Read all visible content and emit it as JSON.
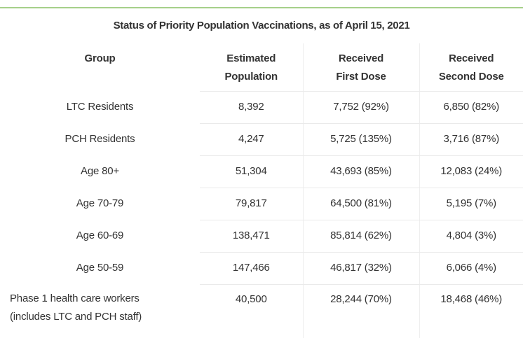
{
  "title": "Status of Priority Population Vaccinations, as of April 15, 2021",
  "headers": {
    "group": "Group",
    "population": [
      "Estimated",
      "Population"
    ],
    "first_dose": [
      "Received",
      "First Dose"
    ],
    "second_dose": [
      "Received",
      "Second Dose"
    ]
  },
  "rows": [
    {
      "group": "LTC Residents",
      "population": "8,392",
      "first_dose": "7,752 (92%)",
      "second_dose": "6,850 (82%)"
    },
    {
      "group": "PCH Residents",
      "population": "4,247",
      "first_dose": "5,725 (135%)",
      "second_dose": "3,716 (87%)"
    },
    {
      "group": "Age 80+",
      "population": "51,304",
      "first_dose": "43,693 (85%)",
      "second_dose": "12,083 (24%)"
    },
    {
      "group": "Age 70-79",
      "population": "79,817",
      "first_dose": "64,500 (81%)",
      "second_dose": "5,195 (7%)"
    },
    {
      "group": "Age 60-69",
      "population": "138,471",
      "first_dose": "85,814 (62%)",
      "second_dose": "4,804 (3%)"
    },
    {
      "group": "Age 50-59",
      "population": "147,466",
      "first_dose": "46,817 (32%)",
      "second_dose": "6,066 (4%)"
    },
    {
      "group": "Phase 1 health care workers",
      "group_line2": "(includes LTC and PCH staff)",
      "population": "40,500",
      "first_dose": "28,244 (70%)",
      "second_dose": "18,468 (46%)"
    }
  ]
}
